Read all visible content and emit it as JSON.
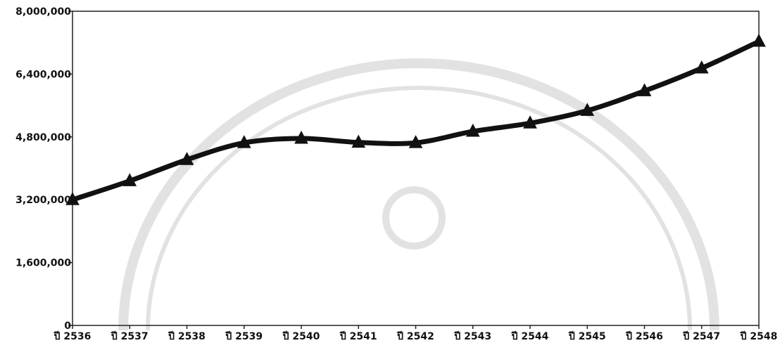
{
  "chart_data": {
    "type": "line",
    "categories": [
      "ปี 2536",
      "ปี 2537",
      "ปี 2538",
      "ปี 2539",
      "ปี 2540",
      "ปี 2541",
      "ปี 2542",
      "ปี 2543",
      "ปี 2544",
      "ปี 2545",
      "ปี 2546",
      "ปี 2547",
      "ปี 2548"
    ],
    "series": [
      {
        "values": [
          3200000,
          3680000,
          4220000,
          4650000,
          4760000,
          4660000,
          4650000,
          4940000,
          5150000,
          5470000,
          5970000,
          6550000,
          7230000
        ]
      }
    ],
    "y_ticks": [
      0,
      1600000,
      3200000,
      4800000,
      6400000,
      8000000
    ],
    "y_tick_labels": [
      "0",
      "1,600,000",
      "3,200,000",
      "4,800,000",
      "6,400,000",
      "8,000,000"
    ],
    "ylim": [
      0,
      8000000
    ],
    "grid": false,
    "marker": "triangle",
    "colors": {
      "line": "#111111",
      "axis": "#222222"
    }
  }
}
